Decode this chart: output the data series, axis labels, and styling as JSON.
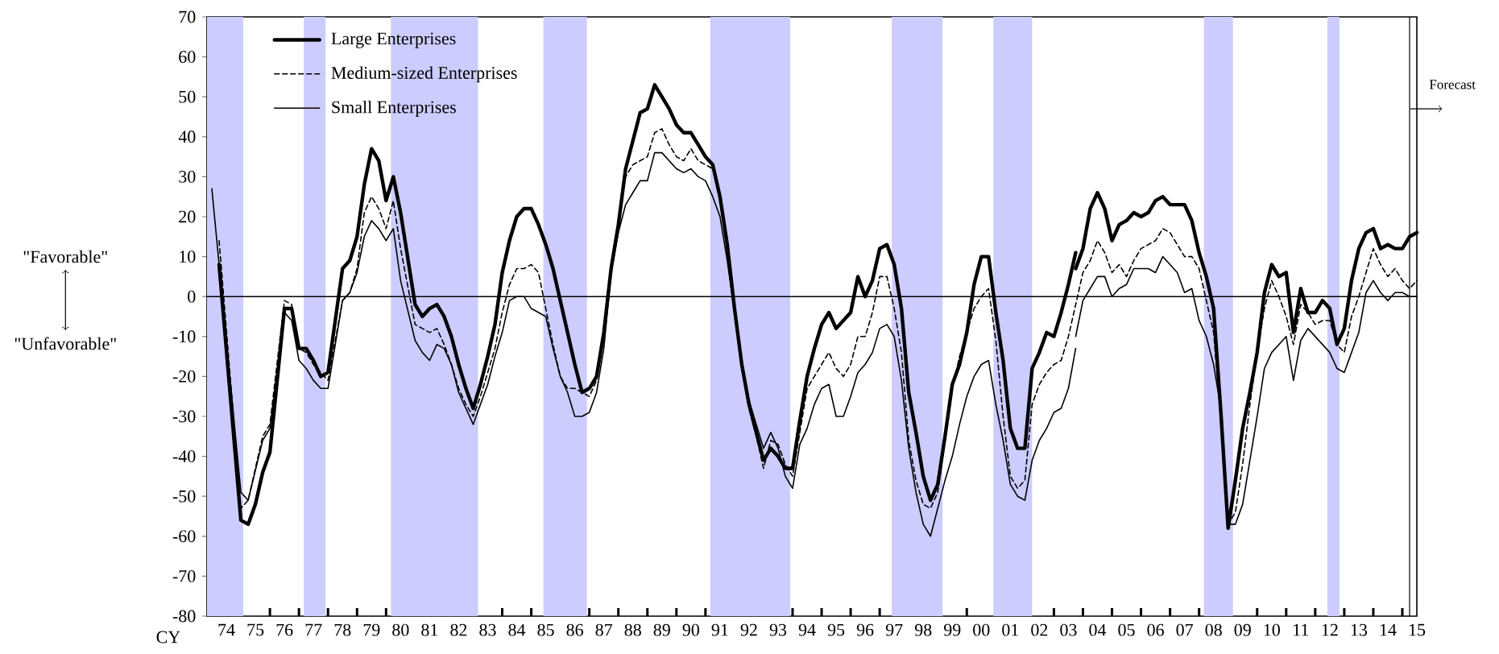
{
  "chart_data": {
    "type": "line",
    "xlabel": "CY",
    "legend": "top left",
    "xlim": [
      "1973-11",
      "2015-07"
    ],
    "ylim": [
      -80,
      70
    ],
    "yticks": [
      -80,
      -70,
      -60,
      -50,
      -40,
      -30,
      -20,
      -10,
      0,
      10,
      20,
      30,
      40,
      50,
      60,
      70
    ],
    "xticks": [
      {
        "value": "1974-07",
        "label": "74"
      },
      {
        "value": "1975-07",
        "label": "75"
      },
      {
        "value": "1976-07",
        "label": "76"
      },
      {
        "value": "1977-07",
        "label": "77"
      },
      {
        "value": "1978-07",
        "label": "78"
      },
      {
        "value": "1979-07",
        "label": "79"
      },
      {
        "value": "1980-07",
        "label": "80"
      },
      {
        "value": "1981-07",
        "label": "81"
      },
      {
        "value": "1982-07",
        "label": "82"
      },
      {
        "value": "1983-07",
        "label": "83"
      },
      {
        "value": "1984-07",
        "label": "84"
      },
      {
        "value": "1985-07",
        "label": "85"
      },
      {
        "value": "1986-07",
        "label": "86"
      },
      {
        "value": "1987-07",
        "label": "87"
      },
      {
        "value": "1988-07",
        "label": "88"
      },
      {
        "value": "1989-07",
        "label": "89"
      },
      {
        "value": "1990-07",
        "label": "90"
      },
      {
        "value": "1991-07",
        "label": "91"
      },
      {
        "value": "1992-07",
        "label": "92"
      },
      {
        "value": "1993-07",
        "label": "93"
      },
      {
        "value": "1994-07",
        "label": "94"
      },
      {
        "value": "1995-07",
        "label": "95"
      },
      {
        "value": "1996-07",
        "label": "96"
      },
      {
        "value": "1997-07",
        "label": "97"
      },
      {
        "value": "1998-07",
        "label": "98"
      },
      {
        "value": "1999-07",
        "label": "99"
      },
      {
        "value": "2000-07",
        "label": "00"
      },
      {
        "value": "2001-07",
        "label": "01"
      },
      {
        "value": "2002-07",
        "label": "02"
      },
      {
        "value": "2003-07",
        "label": "03"
      },
      {
        "value": "2004-07",
        "label": "04"
      },
      {
        "value": "2005-07",
        "label": "05"
      },
      {
        "value": "2006-07",
        "label": "06"
      },
      {
        "value": "2007-07",
        "label": "07"
      },
      {
        "value": "2008-07",
        "label": "08"
      },
      {
        "value": "2009-07",
        "label": "09"
      },
      {
        "value": "2010-07",
        "label": "10"
      },
      {
        "value": "2011-07",
        "label": "11"
      },
      {
        "value": "2012-07",
        "label": "12"
      },
      {
        "value": "2013-07",
        "label": "13"
      },
      {
        "value": "2014-07",
        "label": "14"
      },
      {
        "value": "2015-07",
        "label": "15"
      },
      {
        "value": "1974-01",
        "label": null
      },
      {
        "value": "1975-01",
        "label": null
      },
      {
        "value": "1976-01",
        "label": null
      },
      {
        "value": "1977-01",
        "label": null
      },
      {
        "value": "1978-01",
        "label": null
      },
      {
        "value": "1979-01",
        "label": null
      },
      {
        "value": "1980-01",
        "label": null
      },
      {
        "value": "1981-01",
        "label": null
      },
      {
        "value": "1982-01",
        "label": null
      },
      {
        "value": "1983-01",
        "label": null
      },
      {
        "value": "1984-01",
        "label": null
      },
      {
        "value": "1985-01",
        "label": null
      },
      {
        "value": "1986-01",
        "label": null
      },
      {
        "value": "1987-01",
        "label": null
      },
      {
        "value": "1988-01",
        "label": null
      },
      {
        "value": "1989-01",
        "label": null
      },
      {
        "value": "1990-01",
        "label": null
      },
      {
        "value": "1991-01",
        "label": null
      },
      {
        "value": "1992-01",
        "label": null
      },
      {
        "value": "1993-01",
        "label": null
      },
      {
        "value": "1994-01",
        "label": null
      },
      {
        "value": "1995-01",
        "label": null
      },
      {
        "value": "1996-01",
        "label": null
      },
      {
        "value": "1997-01",
        "label": null
      },
      {
        "value": "1998-01",
        "label": null
      },
      {
        "value": "1999-01",
        "label": null
      },
      {
        "value": "2000-01",
        "label": null
      },
      {
        "value": "2001-01",
        "label": null
      },
      {
        "value": "2002-01",
        "label": null
      },
      {
        "value": "2003-01",
        "label": null
      },
      {
        "value": "2004-01",
        "label": null
      },
      {
        "value": "2005-01",
        "label": null
      },
      {
        "value": "2006-01",
        "label": null
      },
      {
        "value": "2007-01",
        "label": null
      },
      {
        "value": "2008-01",
        "label": null
      },
      {
        "value": "2009-01",
        "label": null
      },
      {
        "value": "2010-01",
        "label": null
      },
      {
        "value": "2011-01",
        "label": null
      },
      {
        "value": "2012-01",
        "label": null
      },
      {
        "value": "2013-01",
        "label": null
      },
      {
        "value": "2014-01",
        "label": null
      },
      {
        "value": "2015-01",
        "label": null
      }
    ],
    "bands": [
      {
        "axis": "x",
        "from": "1973-11",
        "to": "1975-02",
        "color": "#ccccff"
      },
      {
        "axis": "x",
        "from": "1977-03",
        "to": "1977-12",
        "color": "#ccccff"
      },
      {
        "axis": "x",
        "from": "1980-03",
        "to": "1983-03",
        "color": "#ccccff"
      },
      {
        "axis": "x",
        "from": "1985-06",
        "to": "1986-12",
        "color": "#ccccff"
      },
      {
        "axis": "x",
        "from": "1991-03",
        "to": "1993-12",
        "color": "#ccccff"
      },
      {
        "axis": "x",
        "from": "1997-06",
        "to": "1999-03",
        "color": "#ccccff"
      },
      {
        "axis": "x",
        "from": "2000-12",
        "to": "2002-04",
        "color": "#ccccff"
      },
      {
        "axis": "x",
        "from": "2008-03",
        "to": "2009-03",
        "color": "#ccccff"
      },
      {
        "axis": "x",
        "from": "2012-06",
        "to": "2012-11",
        "color": "#ccccff"
      }
    ],
    "ref_lines": [
      {
        "axis": "y",
        "value": 0,
        "color": "#000000"
      },
      {
        "axis": "x",
        "value": "2015-04",
        "color": "#000000"
      }
    ],
    "annotations": [
      "\"Favorable\"",
      "\"Unfavorable\"",
      {
        "text": "Forecast",
        "x": "2015-04",
        "y": 47
      }
    ],
    "series": [
      {
        "name": "Large Enterprises",
        "color": "#000000",
        "line_style": "solid",
        "x": [
          "1974-04",
          "1975-01",
          "1975-04",
          "1975-07",
          "1975-10",
          "1976-01",
          "1976-07",
          "1976-10",
          "1977-01",
          "1977-04",
          "1977-07",
          "1977-10",
          "1978-01",
          "1978-07",
          "1978-10",
          "1979-01",
          "1979-04",
          "1979-07",
          "1979-10",
          "1980-01",
          "1980-04",
          "1980-07",
          "1981-01",
          "1981-04",
          "1981-07",
          "1981-10",
          "1982-01",
          "1982-04",
          "1982-07",
          "1982-10",
          "1983-01",
          "1983-04",
          "1983-07",
          "1983-10",
          "1984-01",
          "1984-04",
          "1984-07",
          "1984-10",
          "1985-01",
          "1985-04",
          "1985-07",
          "1985-10",
          "1986-01",
          "1986-04",
          "1986-07",
          "1986-10",
          "1987-01",
          "1987-04",
          "1987-07",
          "1987-10",
          "1988-01",
          "1988-04",
          "1988-07",
          "1988-10",
          "1989-01",
          "1989-04",
          "1989-07",
          "1989-10",
          "1990-01",
          "1990-04",
          "1990-07",
          "1990-10",
          "1991-01",
          "1991-04",
          "1991-07",
          "1991-10",
          "1992-01",
          "1992-04",
          "1992-07",
          "1992-10",
          "1993-01",
          "1993-04",
          "1993-07",
          "1993-10",
          "1994-01",
          "1994-04",
          "1994-07",
          "1994-10",
          "1995-01",
          "1995-04",
          "1995-07",
          "1995-10",
          "1996-01",
          "1996-04",
          "1996-07",
          "1996-10",
          "1997-01",
          "1997-04",
          "1997-07",
          "1997-10",
          "1998-01",
          "1998-04",
          "1998-07",
          "1998-10",
          "1999-01",
          "1999-04",
          "1999-07",
          "1999-10",
          "2000-01",
          "2000-04",
          "2000-07",
          "2000-10",
          "2001-01",
          "2001-04",
          "2001-07",
          "2001-10",
          "2002-01",
          "2002-04",
          "2002-07",
          "2002-10",
          "2003-01",
          "2003-04",
          "2003-07",
          "2003-10"
        ],
        "values": [
          8,
          -56,
          -57,
          -52,
          -44,
          -39,
          -3,
          -3,
          -13,
          -13,
          -16,
          -20,
          -19,
          7,
          9,
          15,
          28,
          37,
          34,
          24,
          30,
          21,
          -2,
          -5,
          -3,
          -2,
          -5,
          -10,
          -17,
          -23,
          -28,
          -22,
          -15,
          -7,
          6,
          14,
          20,
          22,
          22,
          18,
          13,
          7,
          -1,
          -9,
          -17,
          -24,
          -23,
          -20,
          -9,
          7,
          18,
          32,
          39,
          46,
          47,
          53,
          50,
          47,
          43,
          41,
          41,
          38,
          35,
          33,
          25,
          13,
          -3,
          -17,
          -27,
          -34,
          -41,
          -38,
          -40,
          -43,
          -43,
          -31,
          -20,
          -13,
          -7,
          -4,
          -8,
          -6,
          -4,
          5,
          0,
          4,
          12,
          13,
          8,
          -3,
          -24,
          -34,
          -45,
          -51,
          -47,
          -35,
          -22,
          -17,
          -9,
          3,
          10,
          10,
          -4,
          -16,
          -33,
          -38,
          -38,
          -18,
          -14,
          -9,
          -10,
          -4,
          3,
          11
        ]
      },
      {
        "name": "Medium-sized Enterprises",
        "color": "#000000",
        "line_style": "dashed",
        "x": [
          "1974-04",
          "1975-01",
          "1975-04",
          "1975-10",
          "1976-01",
          "1976-07",
          "1976-10",
          "1977-01",
          "1977-04",
          "1977-07",
          "1978-01",
          "1978-07",
          "1978-10",
          "1979-01",
          "1979-04",
          "1979-07",
          "1979-10",
          "1980-01",
          "1980-04",
          "1980-07",
          "1981-01",
          "1981-04",
          "1981-07",
          "1981-10",
          "1982-01",
          "1982-04",
          "1982-07",
          "1982-10",
          "1983-01",
          "1983-04",
          "1983-07",
          "1983-10",
          "1984-01",
          "1984-04",
          "1984-07",
          "1984-10",
          "1985-01",
          "1985-04",
          "1985-07",
          "1985-10",
          "1986-01",
          "1986-04",
          "1986-07",
          "1986-10",
          "1987-01",
          "1987-04",
          "1987-07",
          "1987-10",
          "1988-01",
          "1988-04",
          "1988-07",
          "1988-10",
          "1989-01",
          "1989-04",
          "1989-07",
          "1989-10",
          "1990-01",
          "1990-04",
          "1990-07",
          "1990-10",
          "1991-01",
          "1991-04",
          "1991-07",
          "1991-10",
          "1992-01",
          "1992-04",
          "1992-07",
          "1992-10",
          "1993-01",
          "1993-04",
          "1993-07",
          "1993-10",
          "1994-01",
          "1994-04",
          "1994-07",
          "1994-10",
          "1995-01",
          "1995-04",
          "1995-07",
          "1995-10",
          "1996-01",
          "1996-04",
          "1996-07",
          "1996-10",
          "1997-01",
          "1997-04",
          "1997-07",
          "1997-10",
          "1998-01",
          "1998-04",
          "1998-07",
          "1998-10",
          "1999-01",
          "1999-04",
          "1999-07",
          "1999-10",
          "2000-01",
          "2000-04",
          "2000-07",
          "2000-10",
          "2001-01",
          "2001-04",
          "2001-07",
          "2001-10",
          "2002-01",
          "2002-04",
          "2002-07",
          "2002-10",
          "2003-01",
          "2003-04",
          "2003-07",
          "2003-10",
          "2004-01",
          "2004-04",
          "2004-07",
          "2004-10",
          "2005-01",
          "2005-04",
          "2005-07",
          "2005-10",
          "2006-01",
          "2006-04",
          "2006-07",
          "2006-10",
          "2007-01",
          "2007-04",
          "2007-07",
          "2007-10",
          "2008-01",
          "2008-04",
          "2008-07",
          "2008-10",
          "2009-01",
          "2009-04",
          "2009-07",
          "2009-10",
          "2010-01",
          "2010-04",
          "2010-07",
          "2010-10",
          "2011-01",
          "2011-04",
          "2011-07",
          "2011-10",
          "2012-01",
          "2012-04",
          "2012-07",
          "2012-10",
          "2013-01",
          "2013-04",
          "2013-07",
          "2013-10",
          "2014-01",
          "2014-04",
          "2014-07",
          "2014-10",
          "2015-01",
          "2015-04",
          "2015-07"
        ],
        "values": [
          14,
          -53,
          -51,
          -35,
          -32,
          -1,
          -2,
          -13,
          -14,
          -17,
          -21,
          -1,
          1,
          7,
          21,
          25,
          22,
          17,
          24,
          12,
          -7,
          -8,
          -9,
          -8,
          -12,
          -17,
          -23,
          -27,
          -30,
          -25,
          -19,
          -13,
          -4,
          3,
          7,
          7,
          8,
          6,
          -3,
          -12,
          -20,
          -23,
          -23,
          -24,
          -25,
          -21,
          -10,
          7,
          19,
          30,
          33,
          34,
          35,
          41,
          42,
          38,
          35,
          34,
          37,
          34,
          33,
          32,
          24,
          12,
          -4,
          -18,
          -28,
          -35,
          -43,
          -36,
          -37,
          -42,
          -45,
          -34,
          -23,
          -20,
          -17,
          -14,
          -18,
          -20,
          -17,
          -10,
          -10,
          -4,
          5,
          5,
          -3,
          -14,
          -36,
          -46,
          -52,
          -53,
          -49,
          -36,
          -23,
          -15,
          -9,
          -3,
          0,
          2,
          -11,
          -30,
          -45,
          -48,
          -46,
          -27,
          -22,
          -19,
          -17,
          -16,
          -10,
          -2,
          6,
          9,
          14,
          11,
          6,
          8,
          5,
          9,
          12,
          13,
          14,
          17,
          16,
          13,
          10,
          10,
          7,
          -1,
          -9,
          -31,
          -57,
          -54,
          -42,
          -27,
          -14,
          -3,
          4,
          0,
          -5,
          -12,
          -2,
          -4,
          -7,
          -6,
          -6,
          -12,
          -14,
          -5,
          0,
          6,
          12,
          8,
          5,
          7,
          4,
          2,
          4
        ]
      },
      {
        "name": "Small Enterprises",
        "color": "#000000",
        "line_style": "solid",
        "x": [
          "1974-01",
          "1975-01",
          "1975-04",
          "1975-10",
          "1976-01",
          "1976-07",
          "1976-10",
          "1977-01",
          "1977-04",
          "1977-07",
          "1977-10",
          "1978-01",
          "1978-07",
          "1978-10",
          "1979-01",
          "1979-04",
          "1979-07",
          "1979-10",
          "1980-01",
          "1980-04",
          "1980-07",
          "1981-01",
          "1981-04",
          "1981-07",
          "1981-10",
          "1982-01",
          "1982-04",
          "1982-07",
          "1982-10",
          "1983-01",
          "1983-04",
          "1983-07",
          "1983-10",
          "1984-01",
          "1984-04",
          "1984-07",
          "1984-10",
          "1985-01",
          "1985-04",
          "1985-07",
          "1985-10",
          "1986-01",
          "1986-04",
          "1986-07",
          "1986-10",
          "1987-01",
          "1987-04",
          "1987-07",
          "1987-10",
          "1988-01",
          "1988-04",
          "1988-07",
          "1988-10",
          "1989-01",
          "1989-04",
          "1989-07",
          "1989-10",
          "1990-01",
          "1990-04",
          "1990-07",
          "1990-10",
          "1991-01",
          "1991-04",
          "1991-07",
          "1991-10",
          "1992-01",
          "1992-04",
          "1992-07",
          "1992-10",
          "1993-01",
          "1993-04",
          "1993-07",
          "1993-10",
          "1994-01",
          "1994-04",
          "1994-07",
          "1994-10",
          "1995-01",
          "1995-04",
          "1995-07",
          "1995-10",
          "1996-01",
          "1996-04",
          "1996-07",
          "1996-10",
          "1997-01",
          "1997-04",
          "1997-07",
          "1997-10",
          "1998-01",
          "1998-04",
          "1998-07",
          "1998-10",
          "1999-01",
          "1999-04",
          "1999-07",
          "1999-10",
          "2000-01",
          "2000-04",
          "2000-07",
          "2000-10",
          "2001-01",
          "2001-04",
          "2001-07",
          "2001-10",
          "2002-01",
          "2002-04",
          "2002-07",
          "2002-10",
          "2003-01",
          "2003-04",
          "2003-07",
          "2003-10"
        ],
        "values": [
          27,
          -49,
          -51,
          -36,
          -33,
          -4,
          -6,
          -16,
          -18,
          -21,
          -23,
          -23,
          -1,
          1,
          6,
          15,
          19,
          17,
          14,
          17,
          4,
          -11,
          -14,
          -16,
          -12,
          -13,
          -17,
          -24,
          -28,
          -32,
          -27,
          -22,
          -15,
          -9,
          -1,
          0,
          0,
          -3,
          -4,
          -5,
          -13,
          -20,
          -24,
          -30,
          -30,
          -29,
          -24,
          -13,
          6,
          16,
          23,
          26,
          29,
          29,
          36,
          36,
          34,
          32,
          31,
          32,
          30,
          29,
          25,
          20,
          9,
          -4,
          -17,
          -26,
          -32,
          -38,
          -34,
          -38,
          -45,
          -48,
          -37,
          -33,
          -27,
          -23,
          -22,
          -30,
          -30,
          -25,
          -19,
          -17,
          -14,
          -8,
          -7,
          -10,
          -21,
          -38,
          -49,
          -57,
          -60,
          -53,
          -46,
          -40,
          -32,
          -25,
          -20,
          -17,
          -16,
          -27,
          -36,
          -47,
          -50,
          -51,
          -41,
          -36,
          -33,
          -29,
          -28,
          -23,
          -13
        ]
      },
      {
        "color": "#000000",
        "line_style": "solid",
        "x": [
          "2003-10",
          "2004-01",
          "2004-04",
          "2004-07",
          "2004-10",
          "2005-01",
          "2005-04",
          "2005-07",
          "2005-10",
          "2006-01",
          "2006-04",
          "2006-07",
          "2006-10",
          "2007-01",
          "2007-04",
          "2007-07",
          "2007-10",
          "2008-01",
          "2008-04",
          "2008-07",
          "2008-10",
          "2009-01",
          "2009-04",
          "2009-07",
          "2009-10",
          "2010-01",
          "2010-04",
          "2010-07",
          "2010-10",
          "2011-01",
          "2011-04",
          "2011-07",
          "2011-10",
          "2012-01",
          "2012-04",
          "2012-07",
          "2012-10",
          "2013-01",
          "2013-04",
          "2013-07",
          "2013-10",
          "2014-01",
          "2014-04",
          "2014-07",
          "2014-10",
          "2015-01",
          "2015-04",
          "2015-07"
        ],
        "values": [
          7,
          12,
          22,
          26,
          22,
          14,
          18,
          19,
          21,
          20,
          21,
          24,
          25,
          23,
          23,
          23,
          19,
          11,
          5,
          -3,
          -29,
          -58,
          -46,
          -33,
          -24,
          -14,
          1,
          8,
          5,
          6,
          -9,
          2,
          -4,
          -4,
          -1,
          -3,
          -12,
          -8,
          4,
          12,
          16,
          17,
          12,
          13,
          12,
          12,
          15,
          16
        ]
      },
      {
        "color": "#000000",
        "line_style": "solid",
        "x": [
          "2003-10",
          "2004-01",
          "2004-04",
          "2004-07",
          "2004-10",
          "2005-01",
          "2005-04",
          "2005-07",
          "2005-10",
          "2006-01",
          "2006-04",
          "2006-07",
          "2006-10",
          "2007-01",
          "2007-04",
          "2007-07",
          "2007-10",
          "2008-01",
          "2008-04",
          "2008-07",
          "2008-10",
          "2009-01",
          "2009-04",
          "2009-07",
          "2009-10",
          "2010-01",
          "2010-04",
          "2010-07",
          "2010-10",
          "2011-01",
          "2011-04",
          "2011-07",
          "2011-10",
          "2012-01",
          "2012-04",
          "2012-07",
          "2012-10",
          "2013-01",
          "2013-04",
          "2013-07",
          "2013-10",
          "2014-01",
          "2014-04",
          "2014-07",
          "2014-10",
          "2015-01",
          "2015-04",
          "2015-07"
        ],
        "values": [
          -10,
          -1,
          2,
          5,
          5,
          0,
          2,
          3,
          7,
          7,
          7,
          6,
          10,
          8,
          6,
          1,
          2,
          -6,
          -10,
          -17,
          -28,
          -57,
          -57,
          -52,
          -41,
          -30,
          -18,
          -14,
          -12,
          -10,
          -21,
          -11,
          -8,
          -10,
          -12,
          -14,
          -18,
          -19,
          -14,
          -9,
          1,
          4,
          1,
          -1,
          1,
          1,
          0,
          0
        ]
      }
    ]
  }
}
